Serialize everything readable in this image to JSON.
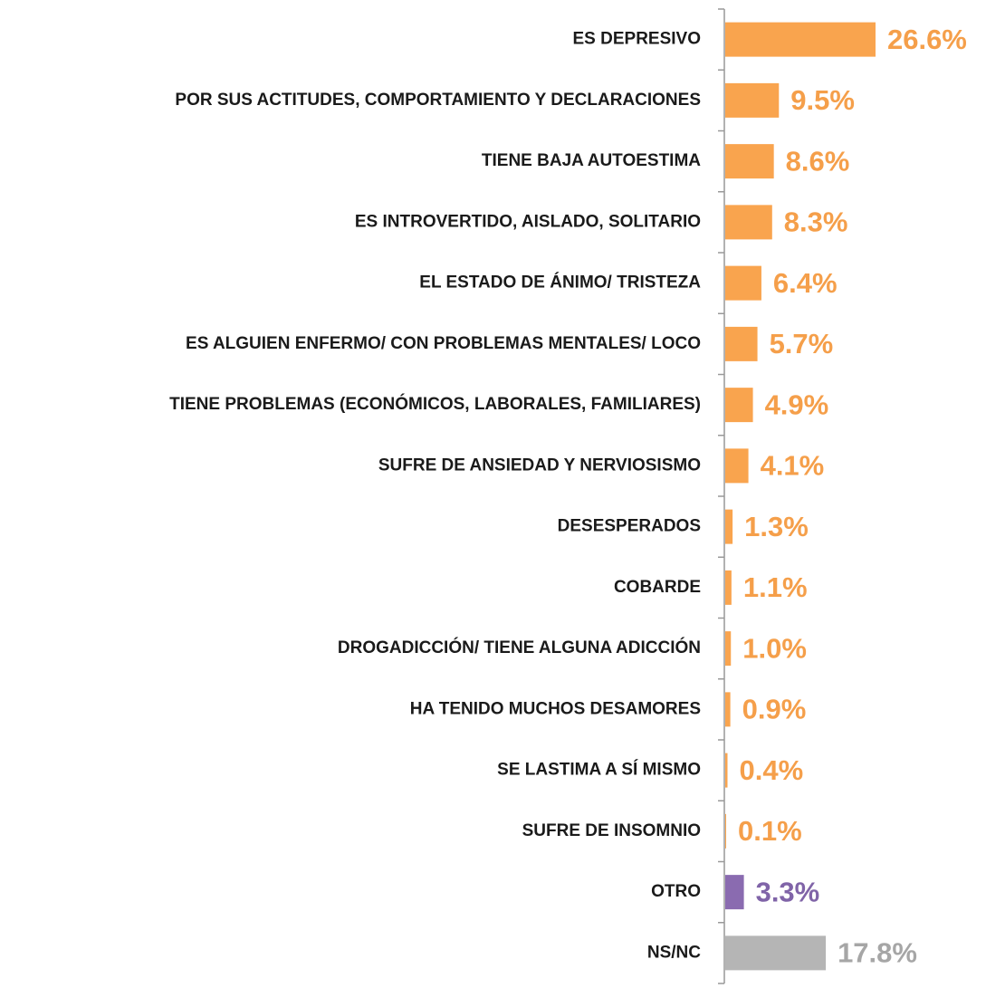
{
  "chart_data": {
    "type": "bar",
    "orientation": "horizontal",
    "categories": [
      "ES DEPRESIVO",
      "POR SUS ACTITUDES, COMPORTAMIENTO Y DECLARACIONES",
      "TIENE BAJA AUTOESTIMA",
      "ES INTROVERTIDO, AISLADO, SOLITARIO",
      "EL ESTADO DE ÁNIMO/ TRISTEZA",
      "ES ALGUIEN ENFERMO/ CON PROBLEMAS MENTALES/ LOCO",
      "TIENE PROBLEMAS (ECONÓMICOS, LABORALES, FAMILIARES)",
      "SUFRE DE ANSIEDAD Y NERVIOSISMO",
      "DESESPERADOS",
      "COBARDE",
      "DROGADICCIÓN/ TIENE ALGUNA ADICCIÓN",
      "HA TENIDO MUCHOS DESAMORES",
      "SE LASTIMA A SÍ MISMO",
      "SUFRE DE INSOMNIO",
      "OTRO",
      "NS/NC"
    ],
    "values": [
      26.6,
      9.5,
      8.6,
      8.3,
      6.4,
      5.7,
      4.9,
      4.1,
      1.3,
      1.1,
      1.0,
      0.9,
      0.4,
      0.1,
      3.3,
      17.8
    ],
    "value_labels": [
      "26.6%",
      "9.5%",
      "8.6%",
      "8.3%",
      "6.4%",
      "5.7%",
      "4.9%",
      "4.1%",
      "1.3%",
      "1.1%",
      "1.0%",
      "0.9%",
      "0.4%",
      "0.1%",
      "3.3%",
      "17.8%"
    ],
    "colors": [
      "#f9a44e",
      "#f9a44e",
      "#f9a44e",
      "#f9a44e",
      "#f9a44e",
      "#f9a44e",
      "#f9a44e",
      "#f9a44e",
      "#f9a44e",
      "#f9a44e",
      "#f9a44e",
      "#f9a44e",
      "#f9a44e",
      "#f9a44e",
      "#8a6bb0",
      "#b5b5b5"
    ]
  }
}
